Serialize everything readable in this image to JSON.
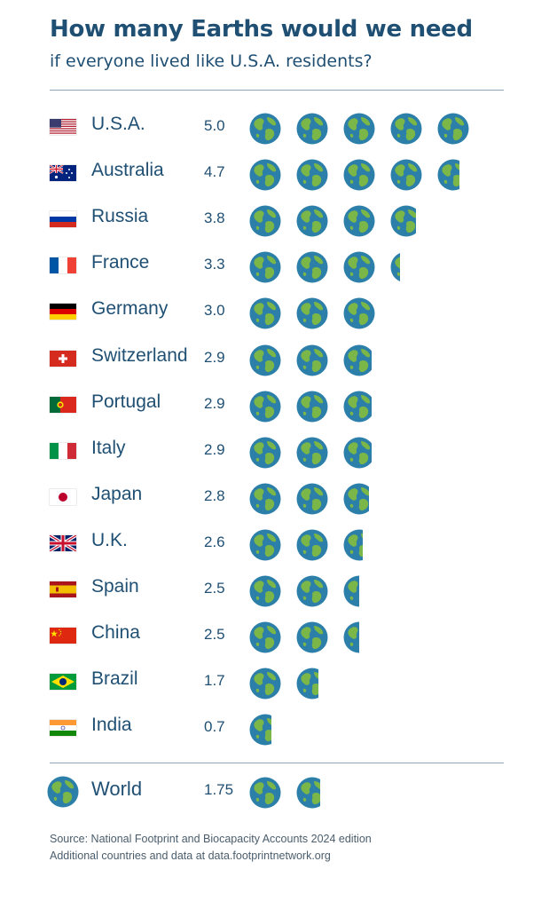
{
  "title": "How many Earths would we need",
  "subtitle": "if everyone lived like U.S.A. residents?",
  "chart_data": {
    "type": "table",
    "series": [
      {
        "name": "",
        "values": [
          5.0,
          4.7,
          3.8,
          3.3,
          3.0,
          2.9,
          2.9,
          2.9,
          2.8,
          2.6,
          2.5,
          2.5,
          1.7,
          0.7
        ]
      }
    ],
    "rows": [
      {
        "flag": "us-flag-icon",
        "country": "U.S.A.",
        "value": 5.0,
        "label": "5.0"
      },
      {
        "flag": "australia-flag-icon",
        "country": "Australia",
        "value": 4.7,
        "label": "4.7"
      },
      {
        "flag": "russia-flag-icon",
        "country": "Russia",
        "value": 3.8,
        "label": "3.8"
      },
      {
        "flag": "france-flag-icon",
        "country": "France",
        "value": 3.3,
        "label": "3.3"
      },
      {
        "flag": "germany-flag-icon",
        "country": "Germany",
        "value": 3.0,
        "label": "3.0"
      },
      {
        "flag": "switzerland-flag-icon",
        "country": "Switzerland",
        "value": 2.9,
        "label": "2.9"
      },
      {
        "flag": "portugal-flag-icon",
        "country": "Portugal",
        "value": 2.9,
        "label": "2.9"
      },
      {
        "flag": "italy-flag-icon",
        "country": "Italy",
        "value": 2.9,
        "label": "2.9"
      },
      {
        "flag": "japan-flag-icon",
        "country": "Japan",
        "value": 2.8,
        "label": "2.8"
      },
      {
        "flag": "uk-flag-icon",
        "country": "U.K.",
        "value": 2.6,
        "label": "2.6"
      },
      {
        "flag": "spain-flag-icon",
        "country": "Spain",
        "value": 2.5,
        "label": "2.5"
      },
      {
        "flag": "china-flag-icon",
        "country": "China",
        "value": 2.5,
        "label": "2.5"
      },
      {
        "flag": "brazil-flag-icon",
        "country": "Brazil",
        "value": 1.7,
        "label": "1.7"
      },
      {
        "flag": "india-flag-icon",
        "country": "India",
        "value": 0.7,
        "label": "0.7"
      }
    ],
    "world": {
      "icon": "earth-icon",
      "country": "World",
      "value": 1.75,
      "label": "1.75"
    },
    "unit_icon": "earth-icon"
  },
  "source": {
    "line1": "Source: National Footprint and Biocapacity Accounts 2024 edition",
    "line2": "Additional countries and data at data.footprintnetwork.org"
  },
  "colors": {
    "text": "#1f4f73",
    "ocean": "#2c7fa8",
    "land": "#7ab648",
    "rule": "#8fa7b8"
  }
}
